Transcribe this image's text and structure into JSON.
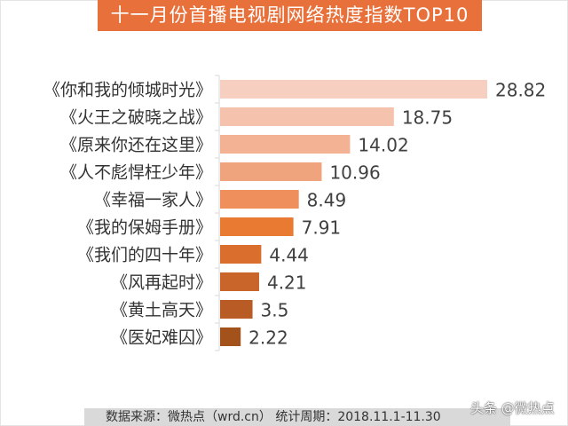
{
  "chart_data": {
    "type": "bar",
    "orientation": "horizontal",
    "title": "十一月份首播电视剧网络热度指数TOP10",
    "categories": [
      "《你和我的倾城时光》",
      "《火王之破晓之战》",
      "《原来你还在这里》",
      "《人不彪悍枉少年》",
      "《幸福一家人》",
      "《我的保姆手册》",
      "《我们的四十年》",
      "《风再起时》",
      "《黄土高天》",
      "《医妃难囚》"
    ],
    "values": [
      28.82,
      18.75,
      14.02,
      10.96,
      8.49,
      7.91,
      4.44,
      4.21,
      3.5,
      2.22
    ],
    "colors": [
      "#f7cfc0",
      "#f5c2ad",
      "#f3b294",
      "#f0a47e",
      "#ee8f5c",
      "#e97a32",
      "#d96e2d",
      "#c9652a",
      "#b95b24",
      "#a4521c"
    ],
    "xlim": [
      0,
      30
    ],
    "grid": false,
    "legend": "none",
    "xlabel": "",
    "ylabel": ""
  },
  "footer": {
    "source": "数据来源：微热点（wrd.cn）   统计周期：2018.11.1-11.30",
    "watermark": "头条 @微热点"
  }
}
